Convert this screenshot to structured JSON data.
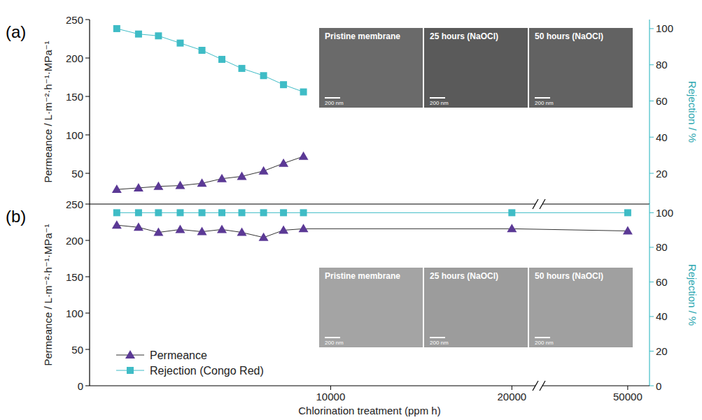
{
  "chart_data": [
    {
      "type": "line",
      "label": "(a)",
      "ylabel": "Permeance / L·m⁻²·h⁻¹·MPa⁻¹",
      "y2label": "Rejection / %",
      "x": [
        -1800,
        -600,
        500,
        1700,
        2900,
        4000,
        5100,
        6300,
        7400,
        8500
      ],
      "xlim": [
        -3300,
        51200
      ],
      "xbreak": [
        21300,
        45300
      ],
      "ylim": [
        10,
        250
      ],
      "yticks": [
        50,
        100,
        150,
        200,
        250
      ],
      "y2lim": [
        3,
        105
      ],
      "y2ticks": [
        20,
        40,
        60,
        80,
        100
      ],
      "tick_labels": "y",
      "series": [
        {
          "color": "#5b3995",
          "marker": "triangle",
          "values": [
            29,
            31,
            33,
            34,
            37,
            43,
            46,
            53,
            63,
            72
          ]
        },
        {
          "color": "#3fbcc6",
          "marker": "square",
          "axis": "y2",
          "values": [
            100,
            97,
            96,
            92,
            88,
            83,
            78,
            74,
            69,
            65
          ]
        }
      ],
      "annotations": [
        {
          "text": "Pristine membrane",
          "scale_bar": "200 nm"
        },
        {
          "text": "25 hours (NaOCl)",
          "scale_bar": "200 nm"
        },
        {
          "text": "50 hours (NaOCl)",
          "scale_bar": "200 nm"
        }
      ]
    },
    {
      "type": "line",
      "label": "(b)",
      "xlabel": "Chlorination treatment (ppm h)",
      "ylabel": "Permeance / L·m⁻²·h⁻¹·MPa⁻¹",
      "y2label": "Rejection / %",
      "x": [
        -1800,
        -600,
        500,
        1700,
        2900,
        4000,
        5100,
        6300,
        7400,
        8500,
        20000,
        50000
      ],
      "xlim": [
        -3300,
        51200
      ],
      "xbreak": [
        21300,
        45300
      ],
      "xticks": [
        10000,
        20000,
        50000
      ],
      "ylim": [
        0,
        250
      ],
      "yticks": [
        0,
        50,
        100,
        150,
        200,
        250
      ],
      "y2lim": [
        0,
        105
      ],
      "y2ticks": [
        0,
        20,
        40,
        60,
        80,
        100
      ],
      "legend": "lower left",
      "series": [
        {
          "name": "Permeance",
          "color": "#5b3995",
          "marker": "triangle",
          "values": [
            221,
            218,
            211,
            215,
            212,
            215,
            211,
            204,
            214,
            216,
            216,
            213
          ]
        },
        {
          "name": "Rejection (Congo Red)",
          "color": "#3fbcc6",
          "marker": "square",
          "axis": "y2",
          "values": [
            100,
            100,
            100,
            100,
            100,
            100,
            100,
            100,
            100,
            100,
            100,
            100
          ]
        }
      ],
      "annotations": [
        {
          "text": "Pristine membrane",
          "scale_bar": "200 nm"
        },
        {
          "text": "25 hours (NaOCl)",
          "scale_bar": "200 nm"
        },
        {
          "text": "50 hours (NaOCl)",
          "scale_bar": "200 nm"
        }
      ]
    }
  ]
}
